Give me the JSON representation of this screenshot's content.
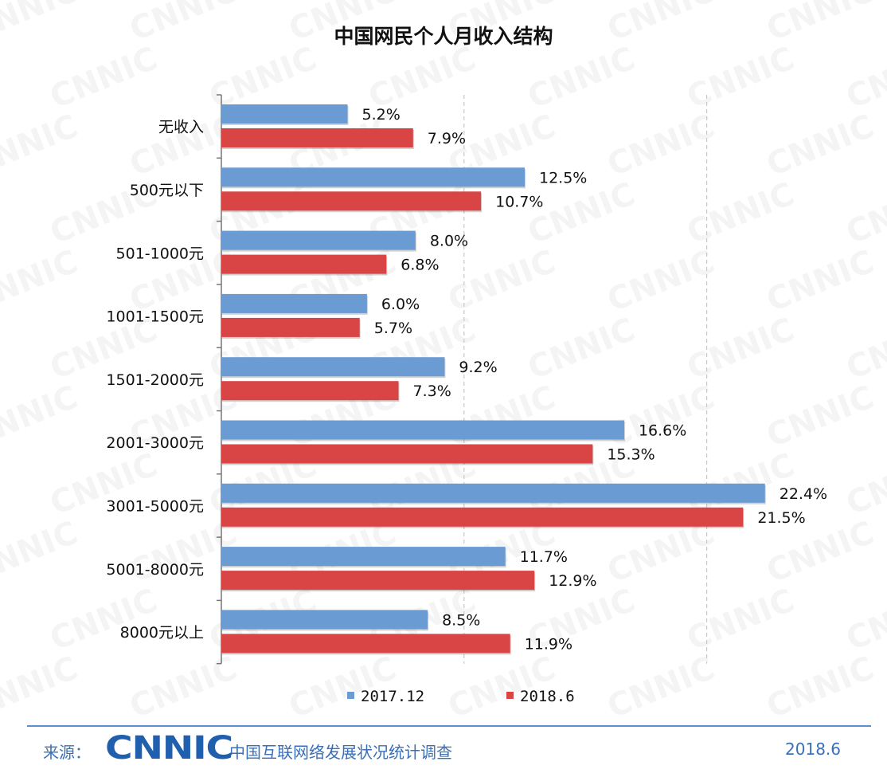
{
  "footer": {
    "source_label": "来源：",
    "logo_text": "CNNIC",
    "org": "中国互联网络发展状况统计调查",
    "date": "2018.6"
  },
  "watermark": {
    "text": "CNNIC"
  },
  "colors": {
    "series_2017": "#6a9bd3",
    "series_2018": "#d94545",
    "grid": "#c8c8c8"
  },
  "chart_data": {
    "type": "bar",
    "orientation": "horizontal",
    "title": "中国网民个人月收入结构",
    "categories": [
      "无收入",
      "500元以下",
      "501-1000元",
      "1001-1500元",
      "1501-2000元",
      "2001-3000元",
      "3001-5000元",
      "5001-8000元",
      "8000元以上"
    ],
    "series": [
      {
        "name": "2017.12",
        "values": [
          5.2,
          12.5,
          8.0,
          6.0,
          9.2,
          16.6,
          22.4,
          11.7,
          8.5
        ],
        "labels": [
          "5.2%",
          "12.5%",
          "8.0%",
          "6.0%",
          "9.2%",
          "16.6%",
          "22.4%",
          "11.7%",
          "8.5%"
        ]
      },
      {
        "name": "2018.6",
        "values": [
          7.9,
          10.7,
          6.8,
          5.7,
          7.3,
          15.3,
          21.5,
          12.9,
          11.9
        ],
        "labels": [
          "7.9%",
          "10.7%",
          "6.8%",
          "5.7%",
          "7.3%",
          "15.3%",
          "21.5%",
          "12.9%",
          "11.9%"
        ]
      }
    ],
    "xlim": [
      0,
      25
    ],
    "unit": "%",
    "grid": "vertical dashed",
    "legend_position": "bottom"
  }
}
